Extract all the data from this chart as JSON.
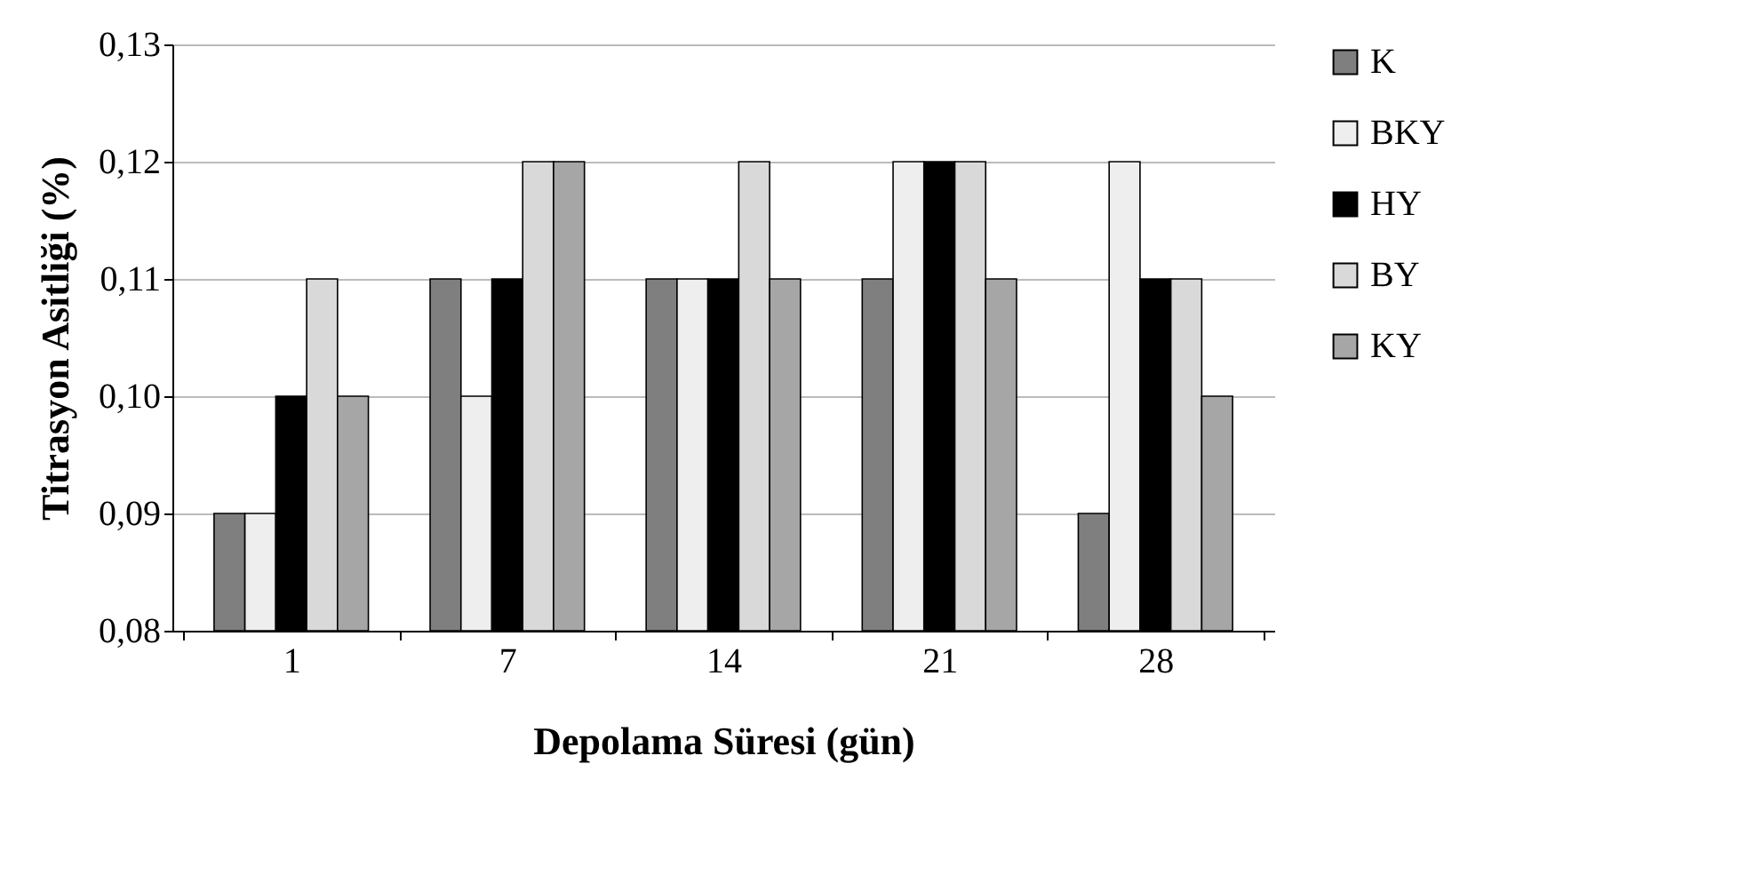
{
  "chart_data": {
    "type": "bar",
    "xlabel": "Depolama Süresi (gün)",
    "ylabel": "Titrasyon Asitliği (%)",
    "categories": [
      "1",
      "7",
      "14",
      "21",
      "28"
    ],
    "series": [
      {
        "name": "K",
        "color": "#7f7f7f",
        "values": [
          0.09,
          0.11,
          0.11,
          0.11,
          0.09
        ]
      },
      {
        "name": "BKY",
        "color": "#eeeeee",
        "values": [
          0.09,
          0.1,
          0.11,
          0.12,
          0.12
        ]
      },
      {
        "name": "HY",
        "color": "#000000",
        "values": [
          0.1,
          0.11,
          0.11,
          0.12,
          0.11
        ]
      },
      {
        "name": "BY",
        "color": "#d9d9d9",
        "values": [
          0.11,
          0.12,
          0.12,
          0.12,
          0.11
        ]
      },
      {
        "name": "KY",
        "color": "#a6a6a6",
        "values": [
          0.1,
          0.12,
          0.11,
          0.11,
          0.1
        ]
      }
    ],
    "ylim": [
      0.08,
      0.13
    ],
    "yticks": [
      {
        "value": 0.08,
        "label": "0,08"
      },
      {
        "value": 0.09,
        "label": "0,09"
      },
      {
        "value": 0.1,
        "label": "0,10"
      },
      {
        "value": 0.11,
        "label": "0,11"
      },
      {
        "value": 0.12,
        "label": "0,12"
      },
      {
        "value": 0.13,
        "label": "0,13"
      }
    ],
    "grid": "y",
    "legend": "right"
  }
}
